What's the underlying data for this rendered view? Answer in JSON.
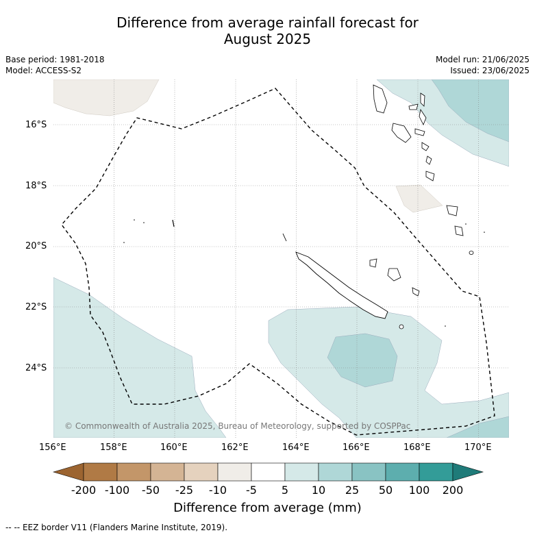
{
  "title_line1": "Difference from average rainfall forecast for",
  "title_line2": "August 2025",
  "base_period": "Base period: 1981-2018",
  "model": "Model: ACCESS-S2",
  "model_run": "Model run: 21/06/2025",
  "issued": "Issued: 23/06/2025",
  "copyright": "© Commonwealth of Australia 2025, Bureau of Meteorology, supported by COSPPac",
  "lat_labels": [
    "16°S",
    "18°S",
    "20°S",
    "22°S",
    "24°S"
  ],
  "lon_labels": [
    "156°E",
    "158°E",
    "160°E",
    "162°E",
    "164°E",
    "166°E",
    "168°E",
    "170°E"
  ],
  "colorbar": {
    "title": "Difference from average (mm)",
    "ticks": [
      "-200",
      "-100",
      "-50",
      "-25",
      "-10",
      "-5",
      "5",
      "10",
      "25",
      "50",
      "100",
      "200"
    ],
    "colors": [
      "#9c6430",
      "#b07a45",
      "#c39669",
      "#d4b494",
      "#e5d2be",
      "#f0ede8",
      "#ffffff",
      "#d5e9e8",
      "#afd7d7",
      "#89c3c3",
      "#5daeae",
      "#339c98",
      "#1f7b79"
    ]
  },
  "footnote": "-- -- EEZ border V11 (Flanders Marine Institute, 2019)."
}
